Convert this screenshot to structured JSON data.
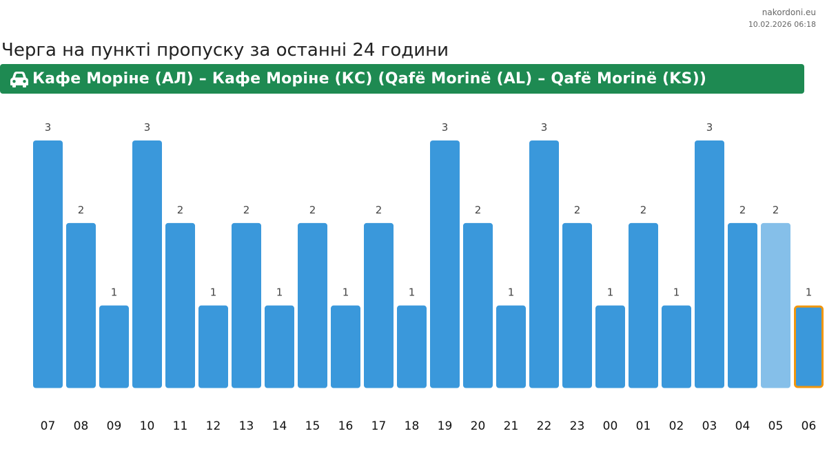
{
  "source": {
    "site": "nakordoni.eu",
    "timestamp": "10.02.2026 06:18"
  },
  "title": "Черга на пункті пропуску за останні 24 години",
  "crossing": {
    "icon": "car-icon",
    "name": "Кафе Моріне (АЛ) – Кафе Моріне (КС) (Qafë Morinë (AL) – Qafë Morinë (KS))",
    "color": "#1e8a52"
  },
  "colors": {
    "bar": "#3a98db",
    "bar_estimated": "#85bfe9",
    "current_outline": "#f0960e"
  },
  "chart_data": {
    "type": "bar",
    "categories": [
      "07",
      "08",
      "09",
      "10",
      "11",
      "12",
      "13",
      "14",
      "15",
      "16",
      "17",
      "18",
      "19",
      "20",
      "21",
      "22",
      "23",
      "00",
      "01",
      "02",
      "03",
      "04",
      "05",
      "06"
    ],
    "values": [
      3,
      2,
      1,
      3,
      2,
      1,
      2,
      1,
      2,
      1,
      2,
      1,
      3,
      2,
      1,
      3,
      2,
      1,
      2,
      1,
      3,
      2,
      2,
      1
    ],
    "estimated_index": 22,
    "current_index": 23,
    "ylim": [
      0,
      3
    ],
    "grid": false,
    "legend": "none",
    "data_labels": true
  }
}
